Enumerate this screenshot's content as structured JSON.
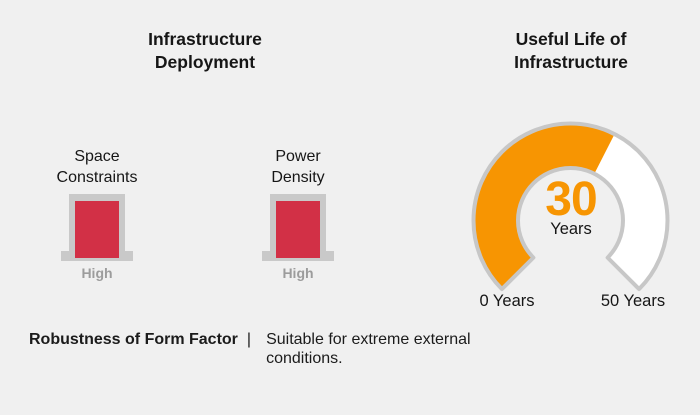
{
  "deployment": {
    "title_lines": [
      "Infrastructure",
      "Deployment"
    ],
    "indicators": [
      {
        "label_lines": [
          "Space",
          "Constraints"
        ],
        "value": "High"
      },
      {
        "label_lines": [
          "Power",
          "Density"
        ],
        "value": "High"
      }
    ]
  },
  "useful_life": {
    "title_lines": [
      "Useful Life of",
      "Infrastructure"
    ],
    "gauge": {
      "value": "30",
      "unit": "Years",
      "min_label": "0 Years",
      "max_label": "50 Years"
    }
  },
  "footnote": {
    "label": "Robustness of Form Factor",
    "separator": "|",
    "text": "Suitable for extreme external conditions."
  },
  "colors": {
    "background": "#f0f0f0",
    "bar_red": "#d23046",
    "frame_gray": "#c9c9c9",
    "gauge_orange": "#f79502",
    "gauge_track_white": "#ffffff",
    "gauge_outline_gray": "#c7c7c7",
    "muted_value_gray": "#9c9c9c",
    "text_black": "#161616"
  },
  "chart_data": [
    {
      "type": "table",
      "title": "Infrastructure Deployment",
      "categories": [
        "Space Constraints",
        "Power Density"
      ],
      "values": [
        "High",
        "High"
      ],
      "annotations": [
        "Robustness of Form Factor | Suitable for extreme external conditions."
      ]
    },
    {
      "type": "pie",
      "subtype": "gauge",
      "title": "Useful Life of Infrastructure",
      "value": 30,
      "min": 0,
      "max": 50,
      "unit": "Years",
      "start_angle_deg": 135,
      "sweep_deg": 270,
      "axis_labels": [
        "0 Years",
        "50 Years"
      ],
      "fill_color": "#f79502",
      "track_color": "#ffffff"
    }
  ]
}
